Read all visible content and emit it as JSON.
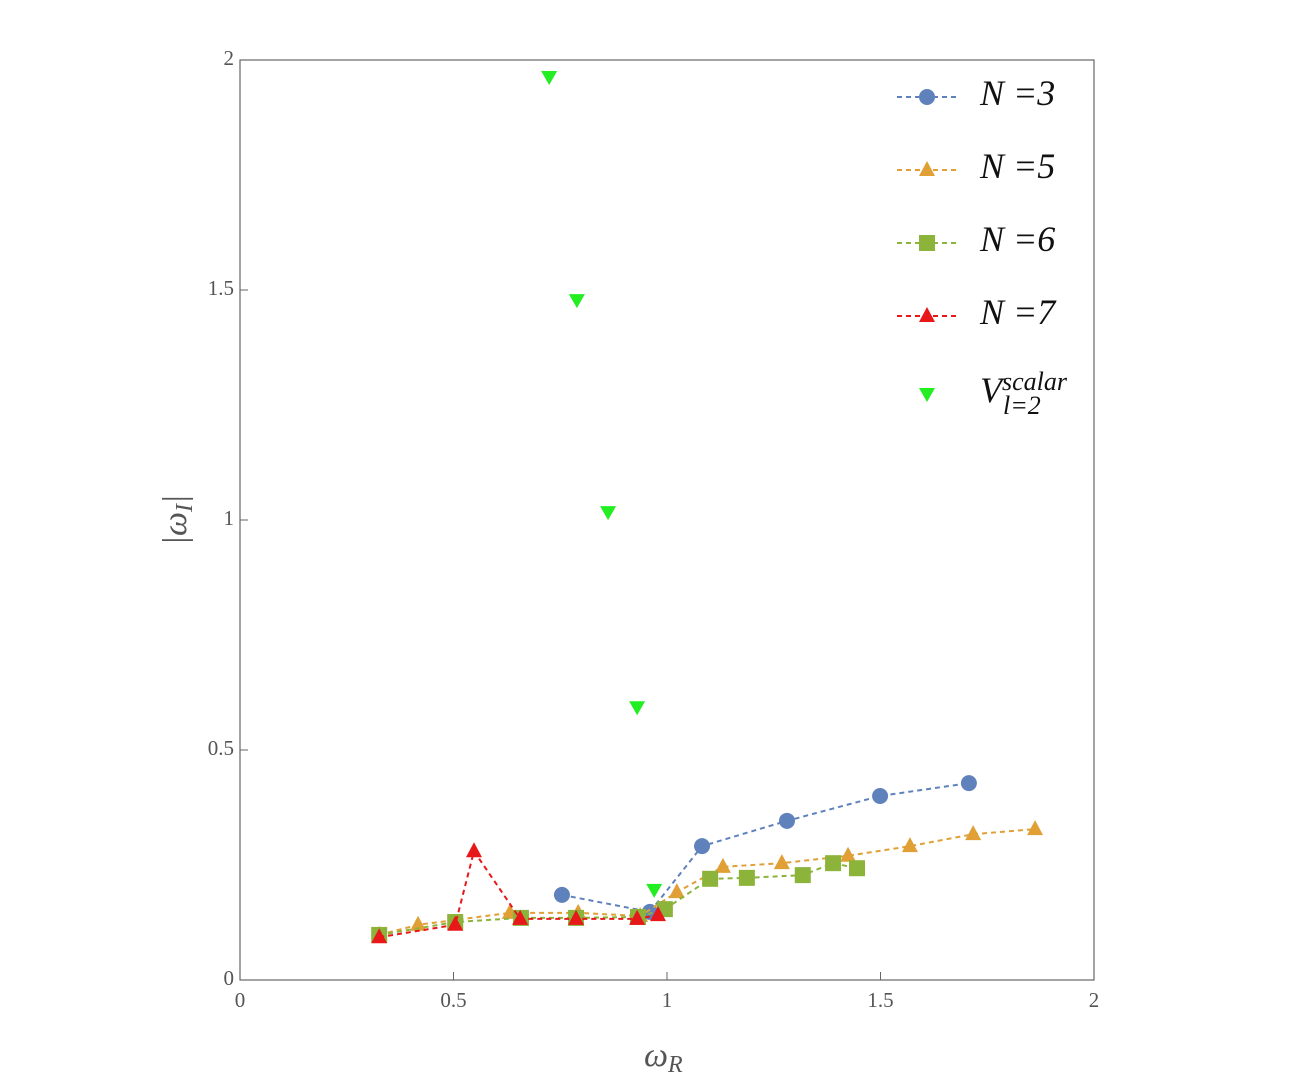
{
  "chart_data": {
    "type": "scatter",
    "x_label": "ω",
    "x_label_sub": "R",
    "y_label": "|ω",
    "y_label_sub": "I",
    "y_label_end": "|",
    "xlim": [
      0,
      2
    ],
    "xticks": [
      0,
      0.5,
      1,
      1.5,
      2
    ],
    "ylim": [
      0,
      2
    ],
    "yticks": [
      0,
      0.5,
      1,
      1.5,
      2
    ],
    "grid": false,
    "legend": "upper right",
    "series": [
      {
        "name": "N =3",
        "color": "#5f82bd",
        "marker": "circle",
        "line": "dashed",
        "x": [
          0.754,
          0.96,
          1.082,
          1.281,
          1.499,
          1.707
        ],
        "values": [
          0.185,
          0.148,
          0.291,
          0.346,
          0.4,
          0.428
        ]
      },
      {
        "name": "N =5",
        "color": "#e0a035",
        "marker": "triangle-up",
        "line": "dashed",
        "x": [
          0.326,
          0.417,
          0.632,
          0.792,
          0.937,
          1.023,
          1.131,
          1.269,
          1.424,
          1.569,
          1.717,
          1.862
        ],
        "values": [
          0.098,
          0.12,
          0.146,
          0.146,
          0.139,
          0.191,
          0.246,
          0.254,
          0.27,
          0.291,
          0.317,
          0.328
        ]
      },
      {
        "name": "N =6",
        "color": "#8cb33a",
        "marker": "square",
        "line": "dashed",
        "x": [
          0.326,
          0.504,
          0.658,
          0.787,
          0.932,
          0.995,
          1.101,
          1.187,
          1.318,
          1.389,
          1.445
        ],
        "values": [
          0.098,
          0.126,
          0.135,
          0.135,
          0.137,
          0.154,
          0.22,
          0.222,
          0.228,
          0.254,
          0.243
        ]
      },
      {
        "name": "N =7",
        "color": "#e8171a",
        "marker": "triangle-up",
        "line": "dashed",
        "x": [
          0.326,
          0.504,
          0.548,
          0.656,
          0.787,
          0.93,
          0.979
        ],
        "values": [
          0.093,
          0.12,
          0.28,
          0.133,
          0.133,
          0.133,
          0.141
        ]
      },
      {
        "name": "V",
        "name_sup": "scalar",
        "name_sub": "l=2",
        "color": "#22ee22",
        "marker": "triangle-down",
        "line": "none",
        "x": [
          0.724,
          0.789,
          0.862,
          0.93,
          0.97
        ],
        "values": [
          1.963,
          1.478,
          1.017,
          0.593,
          0.196
        ]
      }
    ]
  }
}
